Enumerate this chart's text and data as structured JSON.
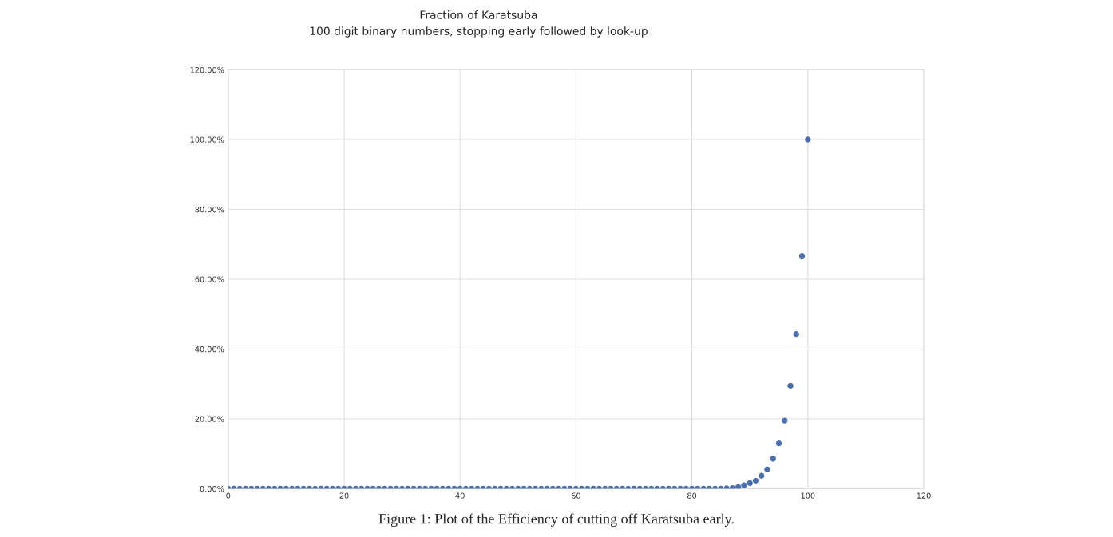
{
  "chart_data": {
    "type": "scatter",
    "title": "Fraction of Karatsuba",
    "subtitle": "100 digit binary numbers, stopping early followed by look-up",
    "x": [
      0,
      1,
      2,
      3,
      4,
      5,
      6,
      7,
      8,
      9,
      10,
      11,
      12,
      13,
      14,
      15,
      16,
      17,
      18,
      19,
      20,
      21,
      22,
      23,
      24,
      25,
      26,
      27,
      28,
      29,
      30,
      31,
      32,
      33,
      34,
      35,
      36,
      37,
      38,
      39,
      40,
      41,
      42,
      43,
      44,
      45,
      46,
      47,
      48,
      49,
      50,
      51,
      52,
      53,
      54,
      55,
      56,
      57,
      58,
      59,
      60,
      61,
      62,
      63,
      64,
      65,
      66,
      67,
      68,
      69,
      70,
      71,
      72,
      73,
      74,
      75,
      76,
      77,
      78,
      79,
      80,
      81,
      82,
      83,
      84,
      85,
      86,
      87,
      88,
      89,
      90,
      91,
      92,
      93,
      94,
      95,
      96,
      97,
      98,
      99,
      100
    ],
    "series": [
      {
        "color": "#4a6fae",
        "values": [
          0,
          0,
          0,
          0,
          0,
          0,
          0,
          0,
          0,
          0,
          0,
          0,
          0,
          0,
          0,
          0,
          0,
          0,
          0,
          0,
          0,
          0,
          0,
          0,
          0,
          0,
          0,
          0,
          0,
          0,
          0,
          0,
          0,
          0,
          0,
          0,
          0,
          0,
          0,
          0,
          0,
          0,
          0,
          0,
          0,
          0,
          0,
          0,
          0,
          0,
          0,
          0,
          0,
          0,
          0,
          0,
          0,
          0,
          0,
          0,
          0,
          0,
          0,
          0,
          0,
          0,
          0,
          0,
          0,
          0,
          0,
          0,
          0,
          0,
          0,
          0,
          0,
          0,
          0,
          0,
          0,
          0,
          0,
          0,
          0,
          0,
          0.1,
          0.2,
          0.5,
          1.0,
          1.6,
          2.3,
          3.7,
          5.5,
          8.6,
          13.0,
          19.5,
          29.5,
          44.3,
          66.7,
          100
        ]
      }
    ],
    "xlim": [
      0,
      120
    ],
    "xticks": [
      0,
      20,
      40,
      60,
      80,
      100,
      120
    ],
    "ylim": [
      0,
      120
    ],
    "yticks": [
      {
        "value": 0,
        "label": "0.00%"
      },
      {
        "value": 20,
        "label": "20.00%"
      },
      {
        "value": 40,
        "label": "40.00%"
      },
      {
        "value": 60,
        "label": "60.00%"
      },
      {
        "value": 80,
        "label": "80.00%"
      },
      {
        "value": 100,
        "label": "100.00%"
      },
      {
        "value": 120,
        "label": "120.00%"
      }
    ],
    "grid": true,
    "marker": "circle",
    "annotations": [
      "Figure 1: Plot of the Efficiency of cutting off Karatsuba early."
    ]
  }
}
